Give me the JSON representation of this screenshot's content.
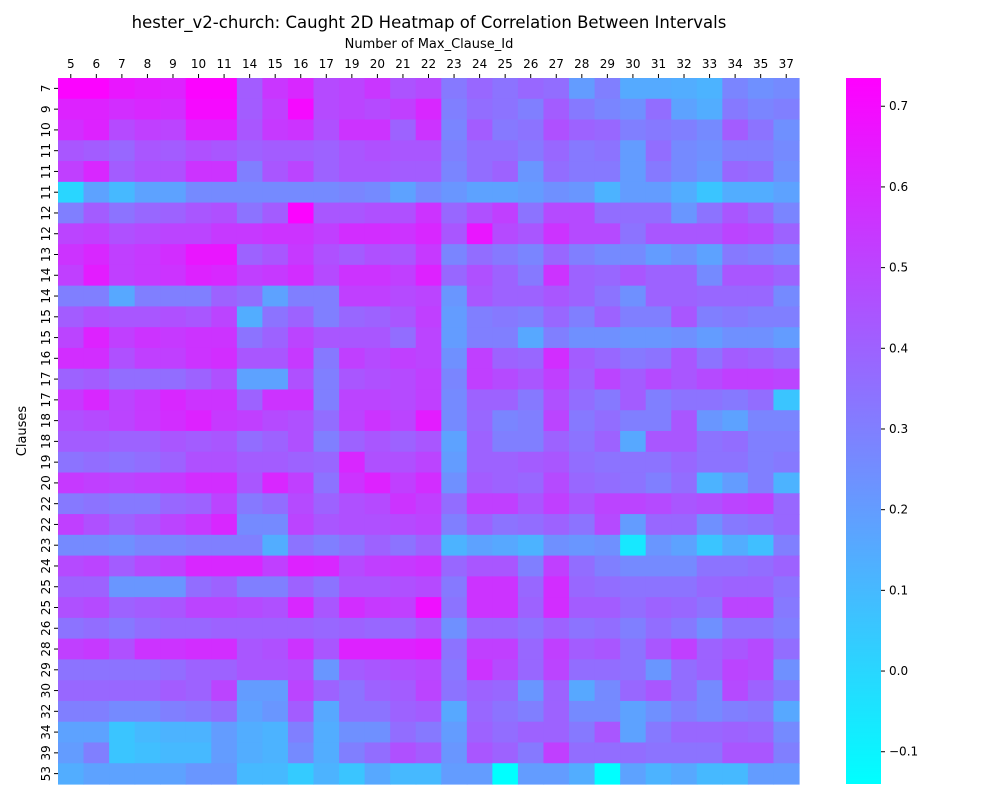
{
  "chart_data": {
    "type": "heatmap",
    "title": "hester_v2-church: Caught 2D Heatmap of Correlation Between Intervals",
    "xlabel": "Number of Max_Clause_Id",
    "ylabel": "Clauses",
    "x_categories": [
      "5",
      "6",
      "7",
      "8",
      "9",
      "10",
      "11",
      "14",
      "15",
      "16",
      "17",
      "19",
      "20",
      "21",
      "22",
      "23",
      "24",
      "25",
      "26",
      "27",
      "28",
      "29",
      "30",
      "31",
      "32",
      "33",
      "34",
      "35",
      "37"
    ],
    "y_categories": [
      "7",
      "9",
      "10",
      "11",
      "11",
      "11",
      "12",
      "12",
      "13",
      "14",
      "14",
      "15",
      "15",
      "16",
      "17",
      "17",
      "18",
      "18",
      "19",
      "20",
      "22",
      "22",
      "23",
      "24",
      "25",
      "25",
      "26",
      "28",
      "29",
      "30",
      "32",
      "34",
      "39",
      "53"
    ],
    "colorbar": {
      "min": -0.14,
      "max": 0.735,
      "ticks": [
        -0.1,
        0.0,
        0.1,
        0.2,
        0.3,
        0.4,
        0.5,
        0.6,
        0.7
      ],
      "tick_labels": [
        "−0.1",
        "0.0",
        "0.1",
        "0.2",
        "0.3",
        "0.4",
        "0.5",
        "0.6",
        "0.7"
      ],
      "colormap": "cool",
      "low_color": "#00ffff",
      "high_color": "#ff00ff"
    },
    "values": [
      [
        0.72,
        0.72,
        0.66,
        0.64,
        0.62,
        0.72,
        0.72,
        0.42,
        0.55,
        0.6,
        0.48,
        0.5,
        0.55,
        0.45,
        0.48,
        0.32,
        0.38,
        0.34,
        0.38,
        0.36,
        0.2,
        0.3,
        0.15,
        0.15,
        0.14,
        0.12,
        0.28,
        0.24,
        0.26
      ],
      [
        0.62,
        0.62,
        0.58,
        0.6,
        0.58,
        0.7,
        0.7,
        0.42,
        0.52,
        0.7,
        0.48,
        0.5,
        0.48,
        0.52,
        0.6,
        0.3,
        0.36,
        0.34,
        0.3,
        0.42,
        0.32,
        0.28,
        0.24,
        0.36,
        0.18,
        0.14,
        0.32,
        0.28,
        0.3
      ],
      [
        0.58,
        0.62,
        0.48,
        0.52,
        0.5,
        0.62,
        0.62,
        0.44,
        0.54,
        0.56,
        0.46,
        0.56,
        0.56,
        0.4,
        0.56,
        0.28,
        0.42,
        0.32,
        0.34,
        0.46,
        0.4,
        0.38,
        0.3,
        0.32,
        0.3,
        0.26,
        0.42,
        0.34,
        0.24
      ],
      [
        0.44,
        0.42,
        0.38,
        0.44,
        0.42,
        0.46,
        0.44,
        0.4,
        0.42,
        0.42,
        0.4,
        0.44,
        0.46,
        0.44,
        0.44,
        0.3,
        0.36,
        0.36,
        0.32,
        0.38,
        0.32,
        0.34,
        0.2,
        0.36,
        0.26,
        0.24,
        0.3,
        0.3,
        0.26
      ],
      [
        0.52,
        0.6,
        0.42,
        0.46,
        0.46,
        0.56,
        0.56,
        0.3,
        0.44,
        0.5,
        0.4,
        0.44,
        0.44,
        0.42,
        0.42,
        0.28,
        0.36,
        0.4,
        0.22,
        0.36,
        0.32,
        0.32,
        0.2,
        0.32,
        0.26,
        0.22,
        0.38,
        0.36,
        0.24
      ],
      [
        0.0,
        0.18,
        0.1,
        0.18,
        0.18,
        0.26,
        0.26,
        0.26,
        0.26,
        0.26,
        0.26,
        0.28,
        0.26,
        0.18,
        0.26,
        0.22,
        0.18,
        0.18,
        0.2,
        0.24,
        0.22,
        0.12,
        0.2,
        0.2,
        0.14,
        0.06,
        0.14,
        0.14,
        0.18
      ],
      [
        0.3,
        0.42,
        0.34,
        0.38,
        0.4,
        0.44,
        0.46,
        0.34,
        0.42,
        0.72,
        0.44,
        0.44,
        0.46,
        0.46,
        0.56,
        0.38,
        0.46,
        0.52,
        0.34,
        0.48,
        0.48,
        0.36,
        0.36,
        0.36,
        0.22,
        0.34,
        0.44,
        0.38,
        0.28
      ],
      [
        0.5,
        0.52,
        0.46,
        0.48,
        0.5,
        0.5,
        0.54,
        0.54,
        0.56,
        0.56,
        0.52,
        0.58,
        0.58,
        0.56,
        0.6,
        0.44,
        0.66,
        0.48,
        0.44,
        0.56,
        0.48,
        0.48,
        0.34,
        0.44,
        0.44,
        0.44,
        0.5,
        0.48,
        0.4
      ],
      [
        0.56,
        0.6,
        0.52,
        0.54,
        0.58,
        0.66,
        0.66,
        0.4,
        0.44,
        0.54,
        0.46,
        0.42,
        0.46,
        0.44,
        0.54,
        0.28,
        0.36,
        0.32,
        0.28,
        0.38,
        0.3,
        0.26,
        0.26,
        0.2,
        0.24,
        0.18,
        0.32,
        0.3,
        0.26
      ],
      [
        0.52,
        0.64,
        0.52,
        0.54,
        0.56,
        0.62,
        0.6,
        0.52,
        0.54,
        0.58,
        0.48,
        0.56,
        0.56,
        0.52,
        0.62,
        0.38,
        0.46,
        0.4,
        0.32,
        0.56,
        0.4,
        0.38,
        0.44,
        0.4,
        0.4,
        0.26,
        0.44,
        0.44,
        0.4
      ],
      [
        0.3,
        0.3,
        0.16,
        0.3,
        0.3,
        0.3,
        0.4,
        0.36,
        0.18,
        0.3,
        0.3,
        0.52,
        0.52,
        0.48,
        0.5,
        0.22,
        0.44,
        0.4,
        0.4,
        0.44,
        0.4,
        0.34,
        0.24,
        0.4,
        0.4,
        0.38,
        0.38,
        0.38,
        0.26
      ],
      [
        0.42,
        0.46,
        0.44,
        0.44,
        0.46,
        0.44,
        0.5,
        0.14,
        0.34,
        0.4,
        0.3,
        0.38,
        0.4,
        0.44,
        0.52,
        0.2,
        0.3,
        0.32,
        0.3,
        0.38,
        0.3,
        0.4,
        0.3,
        0.3,
        0.44,
        0.3,
        0.32,
        0.3,
        0.3
      ],
      [
        0.5,
        0.62,
        0.52,
        0.56,
        0.54,
        0.56,
        0.56,
        0.34,
        0.4,
        0.5,
        0.44,
        0.44,
        0.44,
        0.36,
        0.5,
        0.2,
        0.3,
        0.3,
        0.16,
        0.3,
        0.24,
        0.24,
        0.22,
        0.22,
        0.24,
        0.2,
        0.24,
        0.24,
        0.2
      ],
      [
        0.58,
        0.58,
        0.46,
        0.52,
        0.52,
        0.56,
        0.58,
        0.44,
        0.44,
        0.54,
        0.32,
        0.52,
        0.48,
        0.52,
        0.5,
        0.24,
        0.52,
        0.4,
        0.38,
        0.58,
        0.42,
        0.38,
        0.32,
        0.34,
        0.44,
        0.34,
        0.42,
        0.4,
        0.36
      ],
      [
        0.4,
        0.42,
        0.36,
        0.36,
        0.36,
        0.4,
        0.46,
        0.18,
        0.18,
        0.46,
        0.3,
        0.44,
        0.46,
        0.48,
        0.52,
        0.28,
        0.52,
        0.48,
        0.44,
        0.52,
        0.4,
        0.5,
        0.42,
        0.48,
        0.44,
        0.48,
        0.52,
        0.52,
        0.5
      ],
      [
        0.54,
        0.6,
        0.5,
        0.54,
        0.6,
        0.56,
        0.56,
        0.4,
        0.56,
        0.56,
        0.3,
        0.5,
        0.5,
        0.48,
        0.52,
        0.26,
        0.4,
        0.4,
        0.32,
        0.46,
        0.36,
        0.32,
        0.42,
        0.3,
        0.34,
        0.34,
        0.32,
        0.36,
        0.06
      ],
      [
        0.46,
        0.48,
        0.5,
        0.54,
        0.58,
        0.62,
        0.54,
        0.52,
        0.48,
        0.46,
        0.36,
        0.5,
        0.56,
        0.5,
        0.64,
        0.26,
        0.38,
        0.28,
        0.3,
        0.5,
        0.32,
        0.36,
        0.3,
        0.3,
        0.44,
        0.22,
        0.18,
        0.28,
        0.28
      ],
      [
        0.42,
        0.42,
        0.4,
        0.4,
        0.44,
        0.42,
        0.44,
        0.36,
        0.4,
        0.46,
        0.3,
        0.4,
        0.44,
        0.4,
        0.44,
        0.18,
        0.4,
        0.3,
        0.3,
        0.4,
        0.34,
        0.4,
        0.16,
        0.44,
        0.44,
        0.34,
        0.36,
        0.3,
        0.3
      ],
      [
        0.34,
        0.36,
        0.34,
        0.36,
        0.4,
        0.46,
        0.46,
        0.42,
        0.42,
        0.4,
        0.38,
        0.6,
        0.46,
        0.46,
        0.5,
        0.2,
        0.4,
        0.4,
        0.42,
        0.44,
        0.36,
        0.34,
        0.34,
        0.34,
        0.38,
        0.34,
        0.34,
        0.3,
        0.32
      ],
      [
        0.54,
        0.52,
        0.5,
        0.52,
        0.54,
        0.58,
        0.58,
        0.44,
        0.6,
        0.52,
        0.34,
        0.56,
        0.62,
        0.52,
        0.58,
        0.24,
        0.42,
        0.4,
        0.38,
        0.48,
        0.38,
        0.36,
        0.34,
        0.3,
        0.36,
        0.12,
        0.2,
        0.3,
        0.12
      ],
      [
        0.32,
        0.34,
        0.32,
        0.32,
        0.38,
        0.4,
        0.5,
        0.32,
        0.36,
        0.48,
        0.4,
        0.46,
        0.48,
        0.56,
        0.52,
        0.36,
        0.52,
        0.52,
        0.44,
        0.52,
        0.44,
        0.5,
        0.5,
        0.48,
        0.44,
        0.46,
        0.5,
        0.52,
        0.38
      ],
      [
        0.52,
        0.46,
        0.4,
        0.44,
        0.5,
        0.54,
        0.6,
        0.26,
        0.26,
        0.5,
        0.44,
        0.46,
        0.46,
        0.48,
        0.5,
        0.3,
        0.4,
        0.34,
        0.36,
        0.4,
        0.34,
        0.48,
        0.2,
        0.38,
        0.38,
        0.24,
        0.32,
        0.34,
        0.38
      ],
      [
        0.26,
        0.26,
        0.24,
        0.28,
        0.28,
        0.3,
        0.3,
        0.3,
        0.14,
        0.34,
        0.3,
        0.34,
        0.4,
        0.34,
        0.4,
        0.12,
        0.18,
        0.16,
        0.12,
        0.24,
        0.22,
        0.24,
        -0.06,
        0.22,
        0.18,
        0.06,
        0.14,
        0.08,
        0.3
      ],
      [
        0.48,
        0.5,
        0.42,
        0.48,
        0.52,
        0.6,
        0.6,
        0.6,
        0.52,
        0.62,
        0.6,
        0.48,
        0.52,
        0.54,
        0.56,
        0.38,
        0.44,
        0.44,
        0.3,
        0.52,
        0.36,
        0.3,
        0.26,
        0.26,
        0.26,
        0.34,
        0.34,
        0.36,
        0.4
      ],
      [
        0.4,
        0.4,
        0.22,
        0.22,
        0.22,
        0.36,
        0.4,
        0.3,
        0.3,
        0.4,
        0.34,
        0.44,
        0.44,
        0.46,
        0.48,
        0.32,
        0.56,
        0.56,
        0.38,
        0.58,
        0.38,
        0.36,
        0.34,
        0.34,
        0.34,
        0.38,
        0.4,
        0.4,
        0.34
      ],
      [
        0.46,
        0.48,
        0.4,
        0.42,
        0.44,
        0.5,
        0.5,
        0.48,
        0.46,
        0.6,
        0.44,
        0.58,
        0.54,
        0.52,
        0.68,
        0.34,
        0.56,
        0.56,
        0.4,
        0.58,
        0.42,
        0.42,
        0.36,
        0.4,
        0.38,
        0.34,
        0.5,
        0.5,
        0.32
      ],
      [
        0.34,
        0.36,
        0.32,
        0.36,
        0.38,
        0.38,
        0.4,
        0.4,
        0.4,
        0.4,
        0.38,
        0.4,
        0.38,
        0.38,
        0.44,
        0.24,
        0.38,
        0.38,
        0.34,
        0.4,
        0.34,
        0.36,
        0.3,
        0.36,
        0.32,
        0.24,
        0.34,
        0.34,
        0.3
      ],
      [
        0.52,
        0.54,
        0.46,
        0.56,
        0.56,
        0.58,
        0.58,
        0.44,
        0.46,
        0.56,
        0.44,
        0.62,
        0.62,
        0.62,
        0.64,
        0.34,
        0.52,
        0.52,
        0.38,
        0.52,
        0.42,
        0.44,
        0.34,
        0.44,
        0.52,
        0.4,
        0.44,
        0.48,
        0.36
      ],
      [
        0.34,
        0.34,
        0.34,
        0.34,
        0.36,
        0.4,
        0.4,
        0.44,
        0.44,
        0.46,
        0.22,
        0.42,
        0.44,
        0.46,
        0.48,
        0.32,
        0.56,
        0.48,
        0.38,
        0.5,
        0.36,
        0.36,
        0.34,
        0.22,
        0.36,
        0.4,
        0.5,
        0.48,
        0.24
      ],
      [
        0.38,
        0.38,
        0.38,
        0.38,
        0.42,
        0.4,
        0.5,
        0.2,
        0.2,
        0.5,
        0.4,
        0.34,
        0.4,
        0.42,
        0.5,
        0.34,
        0.4,
        0.38,
        0.22,
        0.4,
        0.16,
        0.26,
        0.38,
        0.44,
        0.36,
        0.26,
        0.48,
        0.4,
        0.32
      ],
      [
        0.3,
        0.3,
        0.26,
        0.26,
        0.3,
        0.32,
        0.36,
        0.18,
        0.22,
        0.42,
        0.16,
        0.34,
        0.34,
        0.4,
        0.42,
        0.16,
        0.38,
        0.34,
        0.3,
        0.4,
        0.26,
        0.26,
        0.18,
        0.24,
        0.3,
        0.26,
        0.3,
        0.32,
        0.16
      ],
      [
        0.18,
        0.18,
        0.06,
        0.1,
        0.12,
        0.12,
        0.2,
        0.14,
        0.12,
        0.3,
        0.14,
        0.24,
        0.24,
        0.36,
        0.32,
        0.2,
        0.4,
        0.36,
        0.4,
        0.4,
        0.32,
        0.44,
        0.18,
        0.32,
        0.38,
        0.38,
        0.4,
        0.38,
        0.26
      ],
      [
        0.2,
        0.3,
        0.06,
        0.08,
        0.1,
        0.1,
        0.2,
        0.14,
        0.12,
        0.26,
        0.14,
        0.3,
        0.36,
        0.46,
        0.42,
        0.22,
        0.44,
        0.4,
        0.32,
        0.52,
        0.36,
        0.36,
        0.36,
        0.34,
        0.34,
        0.34,
        0.44,
        0.44,
        0.3
      ],
      [
        0.14,
        0.18,
        0.18,
        0.18,
        0.18,
        0.22,
        0.22,
        0.1,
        0.1,
        0.04,
        0.12,
        0.06,
        0.16,
        0.1,
        0.1,
        0.2,
        0.2,
        -0.14,
        0.2,
        0.2,
        0.14,
        -0.14,
        0.18,
        0.12,
        0.16,
        0.1,
        0.1,
        0.2,
        0.2
      ]
    ]
  }
}
